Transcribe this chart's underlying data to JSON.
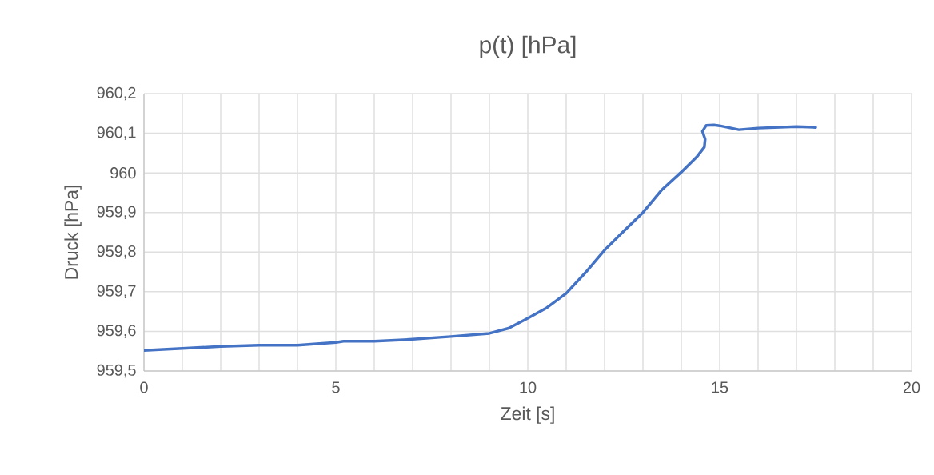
{
  "chart_data": {
    "type": "line",
    "title": "p(t) [hPa]",
    "xlabel": "Zeit [s]",
    "ylabel": "Druck [hPa]",
    "x": [
      0,
      1,
      2,
      3,
      4,
      5,
      5.2,
      6,
      7,
      8,
      9,
      9.5,
      10,
      10.5,
      11,
      11.5,
      12,
      12.5,
      13,
      13.5,
      14,
      14.4,
      14.6,
      14.62,
      14.55,
      14.65,
      14.85,
      15,
      15.5,
      16,
      17,
      17.5
    ],
    "series": [
      {
        "color": "#4472c4",
        "values": [
          959.552,
          959.557,
          959.562,
          959.565,
          959.565,
          959.572,
          959.575,
          959.575,
          959.58,
          959.587,
          959.595,
          959.608,
          959.633,
          959.66,
          959.696,
          959.748,
          959.805,
          959.853,
          959.9,
          959.958,
          960.002,
          960.04,
          960.065,
          960.085,
          960.105,
          960.12,
          960.121,
          960.119,
          960.109,
          960.113,
          960.117,
          960.115
        ]
      }
    ],
    "xlim": [
      0,
      20
    ],
    "ylim": [
      959.5,
      960.2
    ],
    "xticks": [
      0,
      {
        "value": 1,
        "label": null
      },
      {
        "value": 2,
        "label": null
      },
      {
        "value": 3,
        "label": null
      },
      {
        "value": 4,
        "label": null
      },
      5,
      {
        "value": 6,
        "label": null
      },
      {
        "value": 7,
        "label": null
      },
      {
        "value": 8,
        "label": null
      },
      {
        "value": 9,
        "label": null
      },
      10,
      {
        "value": 11,
        "label": null
      },
      {
        "value": 12,
        "label": null
      },
      {
        "value": 13,
        "label": null
      },
      {
        "value": 14,
        "label": null
      },
      15,
      {
        "value": 16,
        "label": null
      },
      {
        "value": 17,
        "label": null
      },
      {
        "value": 18,
        "label": null
      },
      {
        "value": 19,
        "label": null
      },
      20
    ],
    "yticks": [
      {
        "value": 959.5,
        "label": "959,5"
      },
      {
        "value": 959.6,
        "label": "959,6"
      },
      {
        "value": 959.7,
        "label": "959,7"
      },
      {
        "value": 959.8,
        "label": "959,8"
      },
      {
        "value": 959.9,
        "label": "959,9"
      },
      {
        "value": 960,
        "label": "960"
      },
      {
        "value": 960.1,
        "label": "960,1"
      },
      {
        "value": 960.2,
        "label": "960,2"
      }
    ],
    "grid": true,
    "legend": false,
    "marker": "none",
    "line_style": "solid"
  }
}
